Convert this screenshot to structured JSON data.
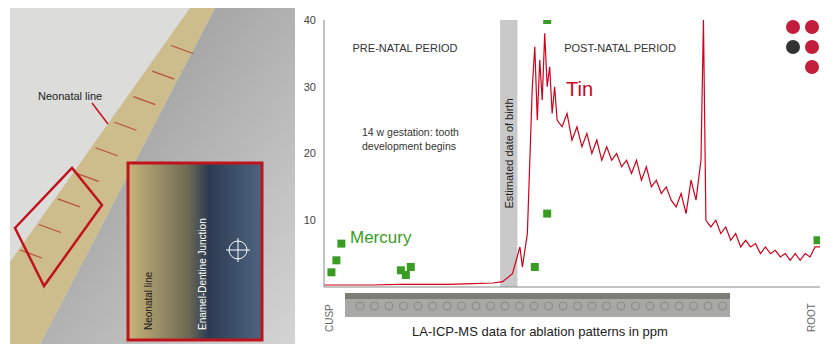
{
  "image_panel": {
    "labels": [
      "Neonatal line"
    ],
    "inset_labels": [
      "Neonatal line",
      "Enamel-Dentine Junction"
    ]
  },
  "chart_data": {
    "type": "line",
    "annotations": [
      "PRE-NATAL PERIOD",
      "POST-NATAL PERIOD",
      "14 w gestation: tooth development begins"
    ],
    "birth_band": {
      "label": "Estimated date of birth",
      "x": [
        35.5,
        39
      ]
    },
    "x_end_labels": [
      "CUSP",
      "ROOT"
    ],
    "xlabel": "LA-ICP-MS data for ablation patterns in ppm",
    "xlim": [
      0,
      100
    ],
    "ylim": [
      0,
      40
    ],
    "yticks": [
      10,
      20,
      30,
      40
    ],
    "tick_labels": "y",
    "grid": false,
    "series": [
      {
        "name": "Tin",
        "color": "#d0021b",
        "type": "line",
        "x": [
          0,
          5,
          10,
          15,
          20,
          25,
          30,
          34,
          36,
          38,
          39.5,
          40,
          41,
          42,
          42.5,
          43,
          43.5,
          44,
          44.5,
          45,
          45.5,
          46,
          46.5,
          47,
          48,
          49,
          50,
          51,
          52,
          53,
          54,
          55,
          56,
          57,
          58,
          59,
          60,
          61,
          62,
          63,
          64,
          65,
          66,
          67,
          68,
          69,
          70,
          71,
          72,
          73,
          74,
          75,
          76,
          76.5,
          77,
          78,
          79,
          80,
          81,
          82,
          83,
          84,
          85,
          86,
          87,
          88,
          89,
          90,
          91,
          92,
          93,
          94,
          95,
          96,
          97,
          98,
          99,
          100
        ],
        "values": [
          0.3,
          0.3,
          0.3,
          0.4,
          0.4,
          0.4,
          0.5,
          0.6,
          0.8,
          2,
          6,
          3,
          8,
          30,
          36,
          25,
          34,
          28,
          38,
          30,
          33,
          26,
          30,
          25,
          24,
          26,
          22,
          24,
          21,
          23,
          20,
          22,
          19,
          21,
          19,
          20,
          18,
          19,
          17,
          19,
          16,
          18,
          15,
          16,
          14,
          15,
          13,
          12,
          14,
          11,
          16,
          13,
          19,
          40,
          10,
          9,
          10,
          8,
          9,
          7,
          8,
          6,
          7,
          6,
          6.5,
          5,
          6,
          5,
          5.5,
          4.5,
          5,
          4,
          5,
          4,
          5,
          4.5,
          6,
          6
        ]
      },
      {
        "name": "Mercury",
        "color": "#3a9d23",
        "type": "scatter",
        "marker": "square",
        "x": [
          1.5,
          2.5,
          3.5,
          15.5,
          16.5,
          17.5,
          42.5,
          45,
          45,
          99.5
        ],
        "values": [
          2.2,
          4,
          6.5,
          2.5,
          1.8,
          3,
          3,
          11,
          40,
          7
        ]
      }
    ]
  }
}
